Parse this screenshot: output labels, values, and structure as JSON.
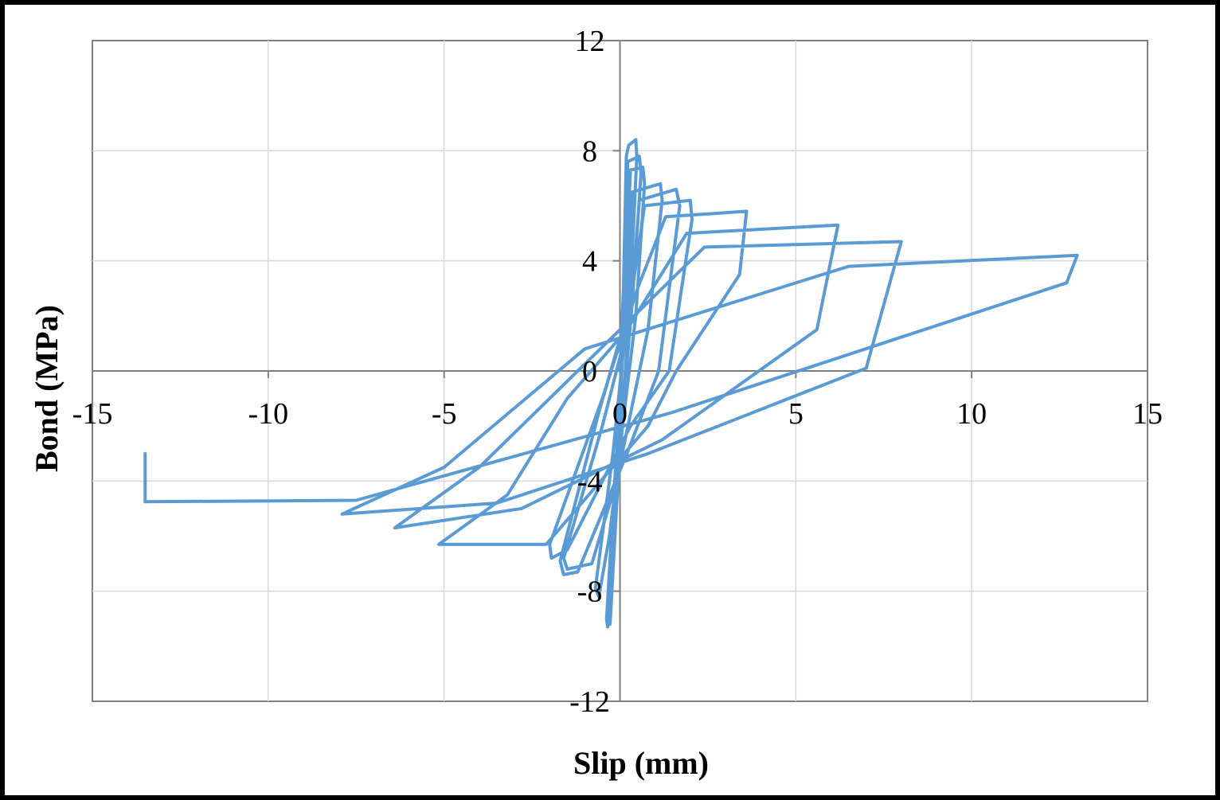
{
  "chart_data": {
    "type": "line",
    "title": "",
    "xlabel": "Slip (mm)",
    "ylabel": "Bond (MPa)",
    "xlim": [
      -15,
      15
    ],
    "ylim": [
      -12,
      12
    ],
    "xticks": [
      -15,
      -10,
      -5,
      0,
      5,
      10,
      15
    ],
    "yticks": [
      12,
      8,
      4,
      0,
      -4,
      -8,
      -12
    ],
    "grid": true,
    "legend": "none",
    "colors": {
      "series": "#5b9bd5",
      "grid": "#d9d9d9",
      "axis": "#7f7f7f",
      "frame": "#000000"
    },
    "series": [
      {
        "values": [
          [
            0,
            0
          ],
          [
            0.1,
            3
          ],
          [
            0.18,
            7.8
          ],
          [
            0.25,
            8.2
          ],
          [
            0.45,
            8.4
          ],
          [
            0.48,
            7.8
          ],
          [
            0.3,
            3
          ],
          [
            -0.1,
            -5
          ],
          [
            -0.3,
            -8.5
          ],
          [
            -0.28,
            -9.2
          ],
          [
            -0.1,
            -5
          ],
          [
            0.05,
            0
          ],
          [
            0.15,
            4
          ],
          [
            0.22,
            7.6
          ],
          [
            0.55,
            7.8
          ],
          [
            0.6,
            7.2
          ],
          [
            0.35,
            2.5
          ],
          [
            -0.2,
            -5.5
          ],
          [
            -0.35,
            -9.3
          ],
          [
            -0.38,
            -9
          ],
          [
            -0.15,
            -4
          ],
          [
            0.1,
            1
          ],
          [
            0.25,
            6
          ],
          [
            0.3,
            7.3
          ],
          [
            0.65,
            7.4
          ],
          [
            0.7,
            6.8
          ],
          [
            0.45,
            2
          ],
          [
            -0.3,
            -6
          ],
          [
            -0.6,
            -8.2
          ],
          [
            -0.7,
            -7.9
          ],
          [
            -0.2,
            -3
          ],
          [
            0.2,
            2
          ],
          [
            0.35,
            6.5
          ],
          [
            1.15,
            6.8
          ],
          [
            1.2,
            6.2
          ],
          [
            0.8,
            1.5
          ],
          [
            -0.1,
            -4
          ],
          [
            -0.8,
            -7
          ],
          [
            -1.5,
            -7.2
          ],
          [
            -1.6,
            -6.8
          ],
          [
            -0.5,
            -2
          ],
          [
            0.3,
            2
          ],
          [
            0.55,
            6.2
          ],
          [
            1.6,
            6.6
          ],
          [
            1.7,
            6
          ],
          [
            1.1,
            0
          ],
          [
            0.2,
            -3
          ],
          [
            -1.2,
            -7.3
          ],
          [
            -1.6,
            -7.4
          ],
          [
            -1.7,
            -6.9
          ],
          [
            -0.6,
            -1.5
          ],
          [
            0.3,
            2.5
          ],
          [
            0.7,
            6
          ],
          [
            2,
            6.2
          ],
          [
            2.05,
            5.5
          ],
          [
            1.4,
            0
          ],
          [
            0.3,
            -2
          ],
          [
            -1.5,
            -6.5
          ],
          [
            -1.95,
            -6.8
          ],
          [
            -2,
            -6.3
          ],
          [
            -0.5,
            -1
          ],
          [
            0.5,
            3
          ],
          [
            1.3,
            5.6
          ],
          [
            3.6,
            5.8
          ],
          [
            3.4,
            3.5
          ],
          [
            1.6,
            0
          ],
          [
            0.8,
            -2
          ],
          [
            -2.1,
            -6.3
          ],
          [
            -5.15,
            -6.3
          ],
          [
            -3.2,
            -4.5
          ],
          [
            -1.5,
            -1
          ],
          [
            0.2,
            1.5
          ],
          [
            1.9,
            5
          ],
          [
            6.2,
            5.3
          ],
          [
            5.6,
            1.5
          ],
          [
            1.2,
            -2.5
          ],
          [
            -2.8,
            -5
          ],
          [
            -6.4,
            -5.7
          ],
          [
            -4,
            -3.5
          ],
          [
            -0.8,
            0.5
          ],
          [
            2.4,
            4.5
          ],
          [
            8,
            4.7
          ],
          [
            7,
            0.1
          ],
          [
            0.8,
            -3
          ],
          [
            -3.5,
            -4.8
          ],
          [
            -7.9,
            -5.2
          ],
          [
            -5,
            -3.5
          ],
          [
            -1,
            0.8
          ],
          [
            6.5,
            3.8
          ],
          [
            13,
            4.2
          ],
          [
            12.7,
            3.2
          ],
          [
            1.5,
            -1.5
          ],
          [
            -7.5,
            -4.7
          ],
          [
            -13.5,
            -4.75
          ],
          [
            -13.5,
            -3
          ]
        ]
      }
    ]
  }
}
